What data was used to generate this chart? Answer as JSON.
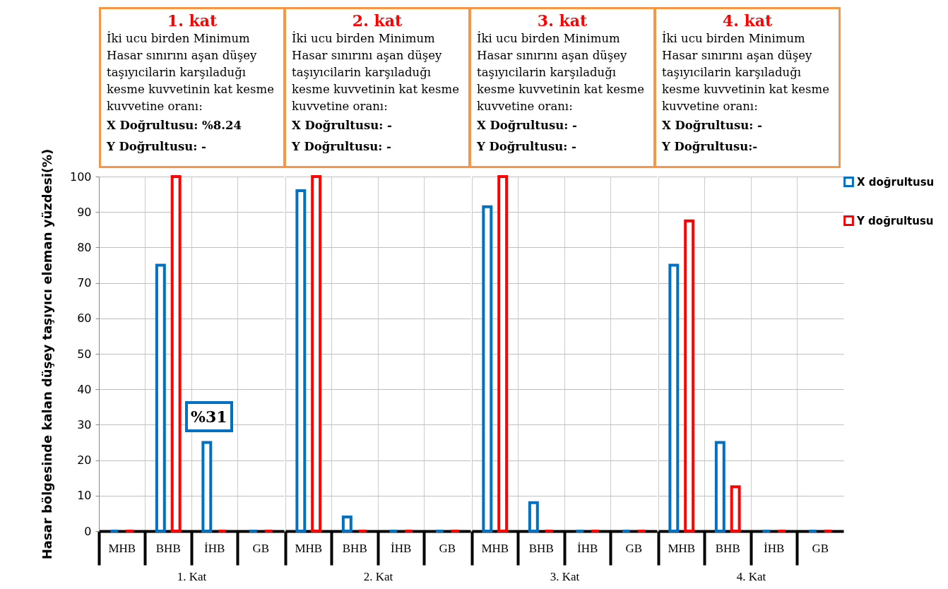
{
  "chart_data": [
    {
      "type": "bar",
      "title": "1. kat",
      "subtitle": "İki ucu birden Minimum Hasar sınırını aşan düşey taşıyıcilarin karşıladuğı kesme kuvvetinin kat kesme kuvvetine oranı:",
      "annotations": [
        "X Doğrultusu: %8.24",
        "Y Doğrultusu: -",
        "%31"
      ],
      "xlabel": "1. Kat",
      "ylabel": "Hasar bölgesinde kalan düşey taşıyıcı eleman yüzdesi(%)",
      "categories": [
        "MHB",
        "BHB",
        "İHB",
        "GB"
      ],
      "series": [
        {
          "name": "X doğrultusu",
          "color": "#0070c0",
          "values": [
            0,
            75,
            25,
            0
          ]
        },
        {
          "name": "Y doğrultusu",
          "color": "#ff0000",
          "values": [
            0,
            100,
            0,
            0
          ]
        }
      ],
      "ylim": [
        0,
        100
      ],
      "yticks": [
        0,
        10,
        20,
        30,
        40,
        50,
        60,
        70,
        80,
        90,
        100
      ],
      "grid": true,
      "legend": "right"
    },
    {
      "type": "bar",
      "title": "2. kat",
      "subtitle": "İki ucu birden Minimum Hasar sınırını aşan düşey taşıyıcilarin karşıladuğı kesme kuvvetinin kat kesme kuvvetine oranı:",
      "annotations": [
        "X Doğrultusu: -",
        "Y Doğrultusu: -"
      ],
      "xlabel": "2. Kat",
      "categories": [
        "MHB",
        "BHB",
        "İHB",
        "GB"
      ],
      "series": [
        {
          "name": "X doğrultusu",
          "color": "#0070c0",
          "values": [
            96,
            4,
            0,
            0
          ]
        },
        {
          "name": "Y doğrultusu",
          "color": "#ff0000",
          "values": [
            100,
            0,
            0,
            0
          ]
        }
      ],
      "ylim": [
        0,
        100
      ],
      "yticks": [
        0,
        10,
        20,
        30,
        40,
        50,
        60,
        70,
        80,
        90,
        100
      ],
      "grid": true,
      "tick_labels": "x",
      "legend": "right"
    },
    {
      "type": "bar",
      "title": "3. kat",
      "subtitle": "İki ucu birden Minimum Hasar sınırını aşan düşey taşıyıcilarin karşıladuğı kesme kuvvetinin kat kesme kuvvetine oranı:",
      "annotations": [
        "X Doğrultusu: -",
        "Y Doğrultusu: -"
      ],
      "xlabel": "3. Kat",
      "categories": [
        "MHB",
        "BHB",
        "İHB",
        "GB"
      ],
      "series": [
        {
          "name": "X doğrultusu",
          "color": "#0070c0",
          "values": [
            91.5,
            8,
            0,
            0
          ]
        },
        {
          "name": "Y doğrultusu",
          "color": "#ff0000",
          "values": [
            100,
            0,
            0,
            0
          ]
        }
      ],
      "ylim": [
        0,
        100
      ],
      "yticks": [
        0,
        10,
        20,
        30,
        40,
        50,
        60,
        70,
        80,
        90,
        100
      ],
      "grid": true,
      "tick_labels": "x",
      "legend": "right"
    },
    {
      "type": "bar",
      "title": "4. kat",
      "subtitle": "İki ucu birden Minimum Hasar sınırını aşan düşey taşıyıcilarin karşıladuğı kesme kuvvetinin kat kesme kuvvetine oranı:",
      "annotations": [
        "X Doğrultusu: -",
        "Y Doğrultusu:-"
      ],
      "xlabel": "4. Kat",
      "categories": [
        "MHB",
        "BHB",
        "İHB",
        "GB"
      ],
      "series": [
        {
          "name": "X doğrultusu",
          "color": "#0070c0",
          "values": [
            75,
            25,
            0,
            0
          ]
        },
        {
          "name": "Y doğrultusu",
          "color": "#ff0000",
          "values": [
            87.5,
            12.5,
            0,
            0
          ]
        }
      ],
      "ylim": [
        0,
        100
      ],
      "yticks": [
        0,
        10,
        20,
        30,
        40,
        50,
        60,
        70,
        80,
        90,
        100
      ],
      "grid": true,
      "tick_labels": "x",
      "legend": "right"
    }
  ]
}
